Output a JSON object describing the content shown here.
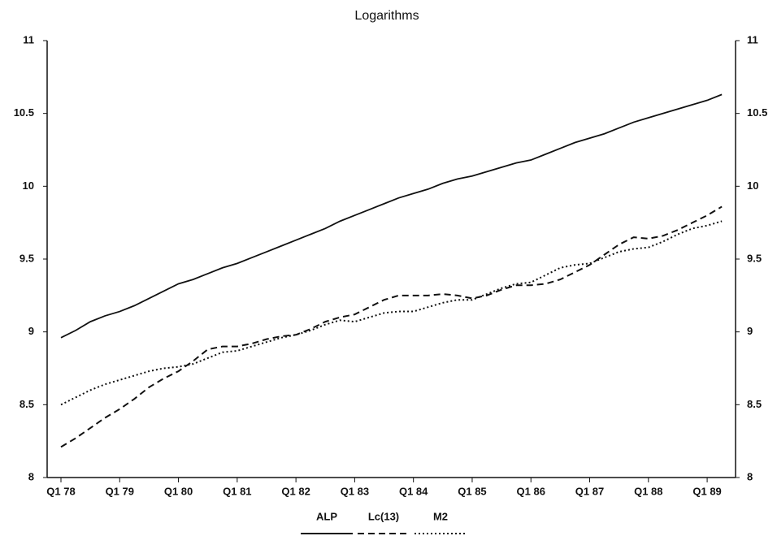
{
  "chart_data": {
    "type": "line",
    "title": "Logarithms",
    "categories": [
      "Q1 78",
      null,
      null,
      null,
      "Q1 79",
      null,
      null,
      null,
      "Q1 80",
      null,
      null,
      null,
      "Q1 81",
      null,
      null,
      null,
      "Q1 82",
      null,
      null,
      null,
      "Q1 83",
      null,
      null,
      null,
      "Q1 84",
      null,
      null,
      null,
      "Q1 85",
      null,
      null,
      null,
      "Q1 86",
      null,
      null,
      null,
      "Q1 87",
      null,
      null,
      null,
      "Q1 88",
      null,
      null,
      null,
      "Q1 89",
      null
    ],
    "series": [
      {
        "name": "ALP",
        "color": "#111111",
        "dash": "solid",
        "values": [
          8.96,
          9.01,
          9.07,
          9.11,
          9.14,
          9.18,
          9.23,
          9.28,
          9.33,
          9.36,
          9.4,
          9.44,
          9.47,
          9.51,
          9.55,
          9.59,
          9.63,
          9.67,
          9.71,
          9.76,
          9.8,
          9.84,
          9.88,
          9.92,
          9.95,
          9.98,
          10.02,
          10.05,
          10.07,
          10.1,
          10.13,
          10.16,
          10.18,
          10.22,
          10.26,
          10.3,
          10.33,
          10.36,
          10.4,
          10.44,
          10.47,
          10.5,
          10.53,
          10.56,
          10.59,
          10.63
        ]
      },
      {
        "name": "Lc(13)",
        "color": "#111111",
        "dash": "dashed",
        "values": [
          8.21,
          8.27,
          8.34,
          8.41,
          8.47,
          8.54,
          8.62,
          8.68,
          8.73,
          8.8,
          8.88,
          8.9,
          8.9,
          8.92,
          8.95,
          8.97,
          8.98,
          9.02,
          9.07,
          9.1,
          9.12,
          9.17,
          9.22,
          9.25,
          9.25,
          9.25,
          9.26,
          9.25,
          9.23,
          9.25,
          9.29,
          9.32,
          9.32,
          9.33,
          9.36,
          9.41,
          9.46,
          9.53,
          9.6,
          9.65,
          9.64,
          9.66,
          9.7,
          9.75,
          9.8,
          9.86
        ]
      },
      {
        "name": "M2",
        "color": "#111111",
        "dash": "dotted",
        "values": [
          8.5,
          8.55,
          8.6,
          8.64,
          8.67,
          8.7,
          8.73,
          8.75,
          8.76,
          8.78,
          8.82,
          8.86,
          8.87,
          8.9,
          8.93,
          8.96,
          8.98,
          9.01,
          9.05,
          9.08,
          9.07,
          9.1,
          9.13,
          9.14,
          9.14,
          9.17,
          9.2,
          9.22,
          9.22,
          9.26,
          9.3,
          9.33,
          9.34,
          9.39,
          9.44,
          9.46,
          9.47,
          9.51,
          9.55,
          9.57,
          9.58,
          9.62,
          9.67,
          9.71,
          9.73,
          9.76
        ]
      }
    ],
    "ylim": [
      8,
      11
    ],
    "yticks": [
      8,
      8.5,
      9,
      9.5,
      10,
      10.5,
      11
    ],
    "right_axis_mirror": true,
    "legend": "bottom"
  }
}
